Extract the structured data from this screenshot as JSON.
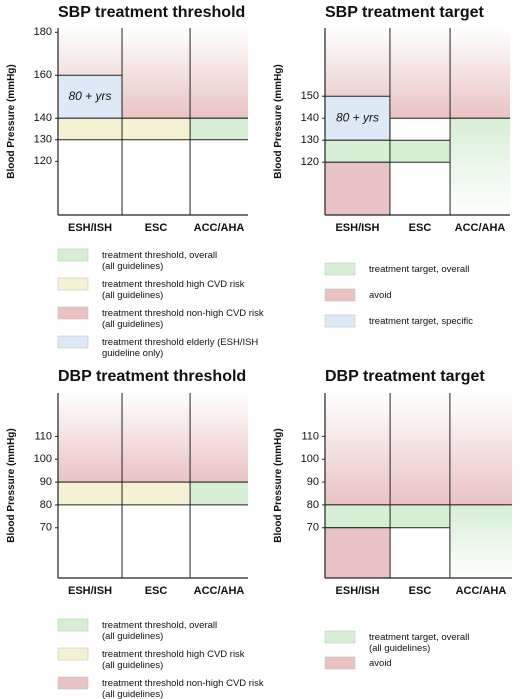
{
  "chart_data": [
    {
      "type": "range",
      "title": "SBP treatment threshold",
      "ylabel": "Blood Pressure (mmHg)",
      "categories": [
        "ESH/ISH",
        "ESC",
        "ACC/AHA"
      ],
      "ylim": [
        95,
        182
      ],
      "yticks": [
        120,
        130,
        140,
        160,
        180
      ],
      "bands": [
        [
          {
            "low": 140,
            "color": "#e9c3c3",
            "fade": "up"
          },
          {
            "low": 140,
            "high": 160,
            "color": "#dde9f6",
            "label": "80 + yrs"
          },
          {
            "low": 130,
            "high": 140,
            "color": "#f4f2d2"
          }
        ],
        [
          {
            "low": 140,
            "color": "#e9c3c3",
            "fade": "up"
          },
          {
            "low": 130,
            "high": 140,
            "color": "#f4f2d2"
          }
        ],
        [
          {
            "low": 140,
            "color": "#e9c3c3",
            "fade": "up"
          },
          {
            "low": 130,
            "high": 140,
            "color": "#d6efd4"
          }
        ]
      ],
      "legend": [
        {
          "label": [
            "treatment threshold, overall",
            "(all guidelines)"
          ],
          "color": "#d6efd4"
        },
        {
          "label": [
            "treatment threshold high CVD risk",
            "(all guidelines)"
          ],
          "color": "#f4f2d2"
        },
        {
          "label": [
            "treatment threshold non-high CVD risk",
            "(all guidelines)"
          ],
          "color": "#e9c3c3"
        },
        {
          "label": [
            "treatment threshold elderly (ESH/ISH",
            "guideline only)"
          ],
          "color": "#dde9f6"
        }
      ]
    },
    {
      "type": "range",
      "title": "SBP treatment target",
      "ylabel": "Blood Pressure (mmHg)",
      "categories": [
        "ESH/ISH",
        "ESC",
        "ACC/AHA"
      ],
      "ylim": [
        96,
        181
      ],
      "yticks": [
        120,
        130,
        140,
        150
      ],
      "bands": [
        [
          {
            "low": 140,
            "color": "#e9c3c3",
            "fade": "up"
          },
          {
            "low": 130,
            "high": 150,
            "color": "#dde9f6",
            "label": "80 + yrs"
          },
          {
            "low": 120,
            "high": 130,
            "color": "#d6efd4"
          },
          {
            "high": 120,
            "color": "#e9c3c3"
          }
        ],
        [
          {
            "low": 140,
            "color": "#e9c3c3",
            "fade": "up"
          },
          {
            "low": 120,
            "high": 130,
            "color": "#d6efd4"
          }
        ],
        [
          {
            "low": 140,
            "color": "#e9c3c3",
            "fade": "up"
          },
          {
            "high": 140,
            "color": "#d6efd4",
            "fade": "down"
          }
        ]
      ],
      "legend": [
        {
          "label": [
            "treatment target, overall"
          ],
          "color": "#d6efd4"
        },
        {
          "label": [
            "avoid"
          ],
          "color": "#e9c3c3"
        },
        {
          "label": [
            "treatment target, specific"
          ],
          "color": "#dde9f6"
        }
      ]
    },
    {
      "type": "range",
      "title": "DBP treatment threshold",
      "ylabel": "Blood Pressure (mmHg)",
      "categories": [
        "ESH/ISH",
        "ESC",
        "ACC/AHA"
      ],
      "ylim": [
        48,
        129
      ],
      "yticks": [
        70,
        80,
        90,
        100,
        110
      ],
      "bands": [
        [
          {
            "low": 90,
            "color": "#e9c3c3",
            "fade": "up"
          },
          {
            "low": 80,
            "high": 90,
            "color": "#f4f2d2"
          }
        ],
        [
          {
            "low": 90,
            "color": "#e9c3c3",
            "fade": "up"
          },
          {
            "low": 80,
            "high": 90,
            "color": "#f4f2d2"
          }
        ],
        [
          {
            "low": 90,
            "color": "#e9c3c3",
            "fade": "up"
          },
          {
            "low": 80,
            "high": 90,
            "color": "#d6efd4"
          }
        ]
      ],
      "legend": [
        {
          "label": [
            "treatment threshold, overall",
            "(all guidelines)"
          ],
          "color": "#d6efd4"
        },
        {
          "label": [
            "treatment threshold high CVD risk",
            "(all guidelines)"
          ],
          "color": "#f4f2d2"
        },
        {
          "label": [
            "treatment threshold non-high CVD risk",
            "(all guidelines)"
          ],
          "color": "#e9c3c3"
        }
      ]
    },
    {
      "type": "range",
      "title": "DBP treatment target",
      "ylabel": "Blood Pressure (mmHg)",
      "categories": [
        "ESH/ISH",
        "ESC",
        "ACC/AHA"
      ],
      "ylim": [
        48,
        129
      ],
      "yticks": [
        70,
        80,
        90,
        100,
        110
      ],
      "bands": [
        [
          {
            "low": 80,
            "color": "#e9c3c3",
            "fade": "up"
          },
          {
            "low": 70,
            "high": 80,
            "color": "#d6efd4"
          },
          {
            "high": 70,
            "color": "#e9c3c3"
          }
        ],
        [
          {
            "low": 80,
            "color": "#e9c3c3",
            "fade": "up"
          },
          {
            "low": 70,
            "high": 80,
            "color": "#d6efd4"
          }
        ],
        [
          {
            "low": 80,
            "color": "#e9c3c3",
            "fade": "up"
          },
          {
            "high": 80,
            "color": "#d6efd4",
            "fade": "down"
          }
        ]
      ],
      "legend": [
        {
          "label": [
            "treatment target, overall",
            "(all guidelines)"
          ],
          "color": "#d6efd4"
        },
        {
          "label": [
            "avoid"
          ],
          "color": "#e9c3c3"
        }
      ]
    }
  ]
}
